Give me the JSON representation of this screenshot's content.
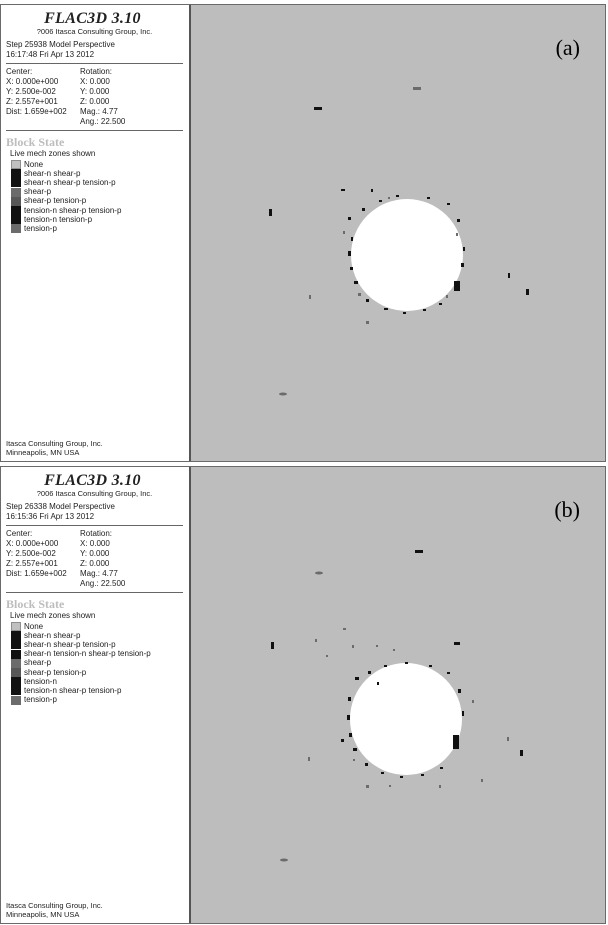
{
  "panels": [
    {
      "label": "(a)",
      "brand": "FLAC3D 3.10",
      "copyright": "?006 Itasca Consulting Group, Inc.",
      "step_line": "Step 25938  Model Perspective",
      "time_line": "16:17:48 Fri Apr 13 2012",
      "view": {
        "center_label": "Center:",
        "rotation_label": "Rotation:",
        "cx": "X: 0.000e+000",
        "rx": "X:  0.000",
        "cy": "Y: 2.500e-002",
        "ry": "Y:  0.000",
        "cz": "Z: 2.557e+001",
        "rz": "Z:  0.000",
        "dist": "Dist: 1.659e+002",
        "mag": "Mag.:    4.77",
        "ang": "Ang.:  22.500"
      },
      "block_state_title": "Block State",
      "zones_caption": "Live mech zones shown",
      "zones": [
        {
          "label": "None",
          "color": "#c0c0c0"
        },
        {
          "label": "shear-n shear-p",
          "color": "#111111"
        },
        {
          "label": "shear-n shear-p tension-p",
          "color": "#111111"
        },
        {
          "label": "shear-p",
          "color": "#6b6b6b"
        },
        {
          "label": "shear-p tension-p",
          "color": "#575757"
        },
        {
          "label": "tension-n shear-p tension-p",
          "color": "#111111"
        },
        {
          "label": "tension-n tension-p",
          "color": "#111111"
        },
        {
          "label": "tension-p",
          "color": "#6b6b6b"
        }
      ],
      "footer_line1": "Itasca Consulting Group, Inc.",
      "footer_line2": "Minneapolis, MN  USA"
    },
    {
      "label": "(b)",
      "brand": "FLAC3D 3.10",
      "copyright": "?006 Itasca Consulting Group, Inc.",
      "step_line": "Step 26338  Model Perspective",
      "time_line": "16:15:36 Fri Apr 13 2012",
      "view": {
        "center_label": "Center:",
        "rotation_label": "Rotation:",
        "cx": "X: 0.000e+000",
        "rx": "X:  0.000",
        "cy": "Y: 2.500e-002",
        "ry": "Y:  0.000",
        "cz": "Z: 2.557e+001",
        "rz": "Z:  0.000",
        "dist": "Dist: 1.659e+002",
        "mag": "Mag.:    4.77",
        "ang": "Ang.:  22.500"
      },
      "block_state_title": "Block State",
      "zones_caption": "Live mech zones shown",
      "zones": [
        {
          "label": "None",
          "color": "#c0c0c0"
        },
        {
          "label": "shear-n shear-p",
          "color": "#111111"
        },
        {
          "label": "shear-n shear-p tension-p",
          "color": "#111111"
        },
        {
          "label": "shear-n tension-n shear-p tension-p",
          "color": "#111111"
        },
        {
          "label": "shear-p",
          "color": "#6b6b6b"
        },
        {
          "label": "shear-p tension-p",
          "color": "#575757"
        },
        {
          "label": "tension-n",
          "color": "#111111"
        },
        {
          "label": "tension-n shear-p tension-p",
          "color": "#111111"
        },
        {
          "label": "tension-p",
          "color": "#6b6b6b"
        }
      ],
      "footer_line1": "Itasca Consulting Group, Inc.",
      "footer_line2": "Minneapolis, MN  USA"
    }
  ],
  "colors": {
    "viewport_background": "#bdbdbd",
    "opening": "#ffffff",
    "failed_zone_dark": "#111111",
    "failed_zone_grey": "#6b6b6b"
  }
}
